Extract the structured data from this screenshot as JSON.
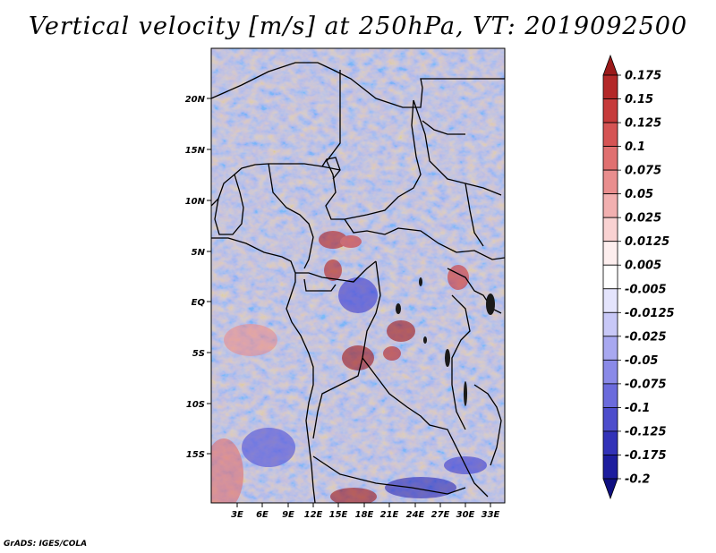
{
  "title": "Vertical velocity [m/s] at 250hPa, VT: 2019092500",
  "credit": "GrADS: IGES/COLA",
  "map": {
    "lat_ticks": [
      "20N",
      "15N",
      "10N",
      "5N",
      "EQ",
      "5S",
      "10S",
      "15S"
    ],
    "lon_ticks": [
      "3E",
      "6E",
      "9E",
      "12E",
      "15E",
      "18E",
      "21E",
      "24E",
      "27E",
      "30E",
      "33E"
    ]
  },
  "colorbar": {
    "labels": [
      "0.175",
      "0.15",
      "0.125",
      "0.1",
      "0.075",
      "0.05",
      "0.025",
      "0.0125",
      "0.005",
      "-0.005",
      "-0.0125",
      "-0.025",
      "-0.05",
      "-0.075",
      "-0.1",
      "-0.125",
      "-0.175",
      "-0.2"
    ],
    "colors": [
      "#9b1a1a",
      "#b32828",
      "#c63b3b",
      "#d55454",
      "#e07070",
      "#e98e8e",
      "#f2b0b0",
      "#f9d2d2",
      "#fdeeee",
      "#ffffff",
      "#e4e4fc",
      "#c8c8f7",
      "#a8a8f0",
      "#8a8ae8",
      "#6b6bdc",
      "#4d4dcc",
      "#3232b8",
      "#1d1d9e",
      "#0f0f80"
    ]
  }
}
